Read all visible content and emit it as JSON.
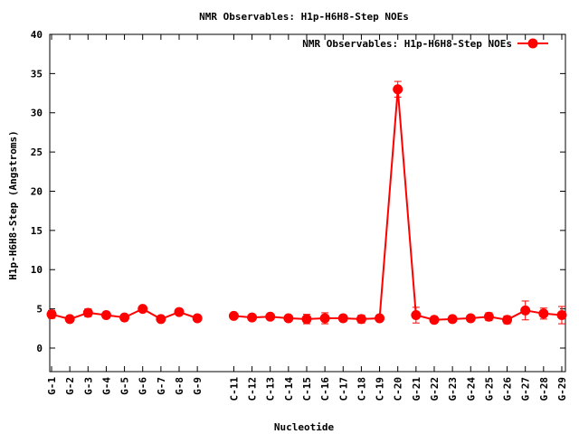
{
  "chart_data": {
    "type": "line",
    "title": "NMR Observables: H1p-H6H8-Step NOEs",
    "xlabel": "Nucleotide",
    "ylabel": "H1p-H6H8-Step (Angstroms)",
    "ylim": [
      -3,
      40
    ],
    "yticks": [
      0,
      5,
      10,
      15,
      20,
      25,
      30,
      35,
      40
    ],
    "legend_position": "top-right",
    "grid": false,
    "categories": [
      "G-1",
      "G-2",
      "G-3",
      "G-4",
      "G-5",
      "G-6",
      "G-7",
      "G-8",
      "G-9",
      "C-11",
      "C-12",
      "C-13",
      "C-14",
      "C-15",
      "C-16",
      "C-17",
      "C-18",
      "C-19",
      "C-20",
      "G-21",
      "G-22",
      "G-23",
      "G-24",
      "G-25",
      "G-26",
      "G-27",
      "G-28",
      "G-29"
    ],
    "positions": [
      1,
      2,
      3,
      4,
      5,
      6,
      7,
      8,
      9,
      11,
      12,
      13,
      14,
      15,
      16,
      17,
      18,
      19,
      20,
      21,
      22,
      23,
      24,
      25,
      26,
      27,
      28,
      29
    ],
    "series": [
      {
        "name": "NMR Observables: H1p-H6H8-Step NOEs",
        "color": "#ff0000",
        "segments": [
          [
            1,
            2,
            3,
            4,
            5,
            6,
            7,
            8,
            9
          ],
          [
            11,
            12,
            13,
            14,
            15,
            16,
            17,
            18,
            19,
            20,
            21,
            22,
            23,
            24,
            25,
            26,
            27,
            28,
            29
          ]
        ],
        "values": [
          4.3,
          3.7,
          4.5,
          4.2,
          3.9,
          5.0,
          3.7,
          4.6,
          3.8,
          4.1,
          3.9,
          4.0,
          3.8,
          3.7,
          3.8,
          3.8,
          3.7,
          3.8,
          33.0,
          4.2,
          3.6,
          3.7,
          3.8,
          4.0,
          3.6,
          4.8,
          4.4,
          4.2
        ],
        "errors": [
          0.5,
          0.3,
          0.5,
          0.4,
          0.3,
          0.3,
          0.3,
          0.3,
          0.3,
          0.3,
          0.3,
          0.3,
          0.3,
          0.6,
          0.7,
          0.4,
          0.5,
          0.4,
          1.0,
          1.0,
          0.4,
          0.4,
          0.4,
          0.5,
          0.5,
          1.2,
          0.7,
          1.1
        ]
      }
    ]
  }
}
